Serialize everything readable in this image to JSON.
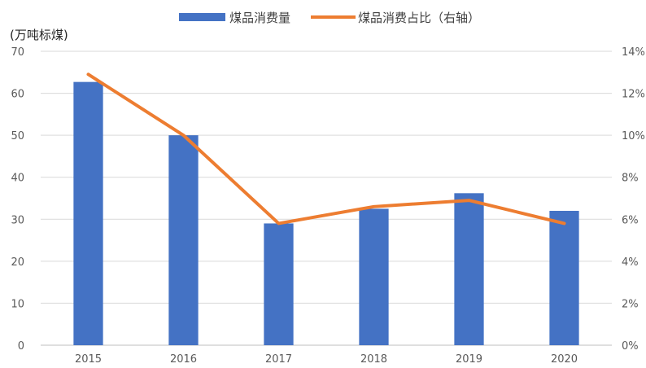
{
  "chart_data": {
    "type": "bar+line",
    "categories": [
      "2015",
      "2016",
      "2017",
      "2018",
      "2019",
      "2020"
    ],
    "y_unit_label": "(万吨标煤)",
    "ylim": [
      0,
      70
    ],
    "yticks": [
      "0",
      "10",
      "20",
      "30",
      "40",
      "50",
      "60",
      "70"
    ],
    "y2lim": [
      0,
      14
    ],
    "y2ticks": [
      "0%",
      "2%",
      "4%",
      "6%",
      "8%",
      "10%",
      "12%",
      "14%"
    ],
    "grid": true,
    "legend_position": "top-center",
    "series": [
      {
        "name": "煤品消费量",
        "type": "bar",
        "axis": "left",
        "values": [
          62.7,
          50.0,
          29.0,
          32.5,
          36.2,
          32.0
        ],
        "color": "#4472C4"
      },
      {
        "name": "煤品消费占比（右轴）",
        "type": "line",
        "axis": "right",
        "values": [
          12.9,
          10.0,
          5.8,
          6.6,
          6.9,
          5.8
        ],
        "color": "#ED7D31"
      }
    ]
  }
}
